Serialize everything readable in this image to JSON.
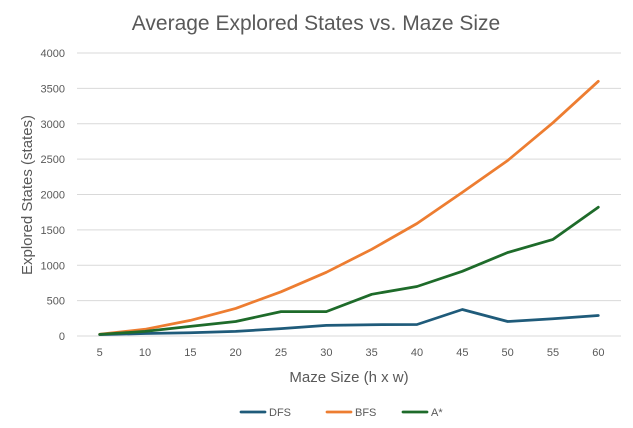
{
  "chart_data": {
    "type": "line",
    "title": "Average Explored States vs. Maze Size",
    "xlabel": "Maze Size (h x w)",
    "ylabel": "Explored States (states)",
    "categories": [
      "5",
      "10",
      "15",
      "20",
      "25",
      "30",
      "35",
      "40",
      "45",
      "50",
      "55",
      "60"
    ],
    "ylim": [
      0,
      4000
    ],
    "yticks": [
      0,
      500,
      1000,
      1500,
      2000,
      2500,
      3000,
      3500,
      4000
    ],
    "grid": true,
    "legend_position": "bottom",
    "series": [
      {
        "name": "DFS",
        "color": "#1f5b7a",
        "values": [
          20,
          35,
          45,
          65,
          105,
          150,
          160,
          162,
          375,
          205,
          245,
          290
        ]
      },
      {
        "name": "BFS",
        "color": "#ed7d31",
        "values": [
          25,
          95,
          220,
          390,
          625,
          900,
          1225,
          1590,
          2030,
          2480,
          3015,
          3600
        ]
      },
      {
        "name": "A*",
        "color": "#1e6b2a",
        "values": [
          22,
          65,
          135,
          205,
          345,
          345,
          590,
          700,
          915,
          1180,
          1365,
          1820
        ]
      }
    ]
  }
}
